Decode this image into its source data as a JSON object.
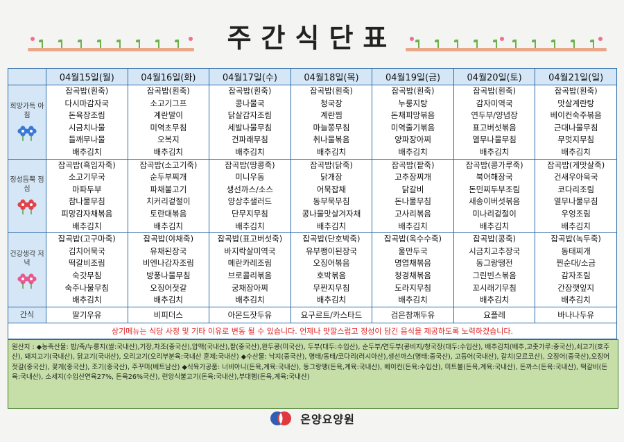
{
  "title": "주간식단표",
  "row_icons": {
    "breakfast": "blue-flowers-icon",
    "lunch": "red-flowers-icon",
    "dinner": "pink-flowers-icon"
  },
  "colors": {
    "header_bg": "#d5e7f6",
    "border": "#2d6aa6",
    "origin_bg": "#c6dea8",
    "notice": "#e02020"
  },
  "days": [
    "04월15일(월)",
    "04월16일(화)",
    "04월17일(수)",
    "04월18일(목)",
    "04월19일(금)",
    "04월20일(토)",
    "04월21일(일)"
  ],
  "meals": [
    {
      "label": "희망가득 아침",
      "items": [
        [
          "잡곡밥(흰죽)",
          "다시마감자국",
          "돈육장조림",
          "시금치나물",
          "들깨무나물",
          "배추김치"
        ],
        [
          "잡곡밥(흰죽)",
          "소고기그프",
          "계란말이",
          "미역초무침",
          "오복지",
          "배추김치"
        ],
        [
          "잡곡밥(흰죽)",
          "콩나물국",
          "닭살감자조림",
          "세발나물무침",
          "건파래무침",
          "배추김치"
        ],
        [
          "잡곡밥(흰죽)",
          "청국장",
          "계란찜",
          "마늘쫑무침",
          "취나물볶음",
          "배추김치"
        ],
        [
          "잡곡밥(흰죽)",
          "누룽지탕",
          "돈채피망볶음",
          "미역줄기볶음",
          "양파장아찌",
          "배추김치"
        ],
        [
          "잡곡밥(흰죽)",
          "감자미역국",
          "연두부/양념장",
          "표고버섯볶음",
          "열무나물무침",
          "배추김치"
        ],
        [
          "잡곡밥(흰죽)",
          "맛살계란탕",
          "베이컨숙주볶음",
          "근대나물무침",
          "무멋지무침",
          "배추김치"
        ]
      ]
    },
    {
      "label": "정성듬뿍 점심",
      "items": [
        [
          "잡곡밥(흑임자죽)",
          "소고기무국",
          "마파두부",
          "참나물무침",
          "피망감자채볶음",
          "배추김치"
        ],
        [
          "잡곡밥(소고기죽)",
          "순두부찌개",
          "파채불고기",
          "치커리겉절이",
          "토란대볶음",
          "배추김치"
        ],
        [
          "잡곡밥(땅콩죽)",
          "미니우동",
          "생선까스/소스",
          "양상추샐러드",
          "단무지무침",
          "배추김치"
        ],
        [
          "잡곡밥(닭죽)",
          "닭개장",
          "어묵잡채",
          "동부묵무침",
          "콩나물맛살겨자채",
          "배추김치"
        ],
        [
          "잡곡밥(팥죽)",
          "고추장찌개",
          "닭갈비",
          "돈나물무침",
          "고사리볶음",
          "배추김치"
        ],
        [
          "잡곡밥(콩가루죽)",
          "북어해장국",
          "돈민찌두부조림",
          "새송이버섯볶음",
          "미나리겉절이",
          "배추김치"
        ],
        [
          "잡곡밥(게맛살죽)",
          "건새우아욱국",
          "코다리조림",
          "열무나물무침",
          "우엉조림",
          "배추김치"
        ]
      ]
    },
    {
      "label": "건강생각 저녁",
      "items": [
        [
          "잡곡밥(고구마죽)",
          "김치어묵국",
          "떡갈비조림",
          "숙갓무침",
          "숙주나물무침",
          "배추김치"
        ],
        [
          "잡곡밥(야채죽)",
          "유채된장국",
          "비엔나감자조림",
          "방풍나물무침",
          "오징어젓갈",
          "배추김치"
        ],
        [
          "잡곡밥(표고버섯죽)",
          "바지락살미역국",
          "메란카레조림",
          "브로콜리볶음",
          "궁채장아찌",
          "배추김치"
        ],
        [
          "잡곡밥(단호박죽)",
          "유부팽이된장국",
          "오징어볶음",
          "호박볶음",
          "무짠지무침",
          "배추김치"
        ],
        [
          "잡곡밥(옥수수죽)",
          "울만두국",
          "명엽채볶음",
          "청경채볶음",
          "도라지무침",
          "배추김치"
        ],
        [
          "잡곡밥(콩죽)",
          "시금치고추장국",
          "동그랑땡전",
          "그린빈스볶음",
          "꼬시래기무침",
          "배추김치"
        ],
        [
          "잡곡밥(녹두죽)",
          "동태찌개",
          "찐순대/소금",
          "감자조림",
          "간장깻잎지",
          "배추김치"
        ]
      ]
    }
  ],
  "snack": {
    "label": "간식",
    "items": [
      "딸기우유",
      "비피더스",
      "아몬드잣두유",
      "요구르트/카스타드",
      "검은참깨두유",
      "요플레",
      "바나나두유"
    ]
  },
  "notice": "상기메뉴는 식당 사정 및 기타 이유로 변동 될 수 있습니다. 언제나 맛깔스럽고 정성이 담긴 음식을 제공하도록 노력하겠습니다.",
  "origin_text": "원산지 : ◆농축산물: 밥/죽/누룽지(쌀:국내산),기장,차조(중국산),압맥(국내산),팥(중국산),완두콩(미국산), 두부(대두:수입산), 순두부/연두부(콩비지/청국장(대두:수입산), 배추김치(배추,고춧가루:중국산),쇠고기(호주산), 돼지고기(국내산), 닭고기(국내산), 오리고기(오리부분육:국내산 훈제:국내산) ◆수산물: 낙지(중국산), 명태/동태/코다리(러시아산),생선까스(명태:중국산), 고등어(국내산), 갈치(모르코산), 오징어(중국산),오징어젓갈(중국산), 꽃게(중국산), 조기(중국산), 주꾸미(베트남산) ◆식육가공품: 너비아니(돈육,계육:국내산), 동그랑땡(돈육,계육:국내산), 베이컨(돈육:수입산), 미트볼(돈육,계육:국내산), 돈까스(돈육:국내산), 떡갈비(돈육:국내산), 소세지(수입산연육27%, 돈육26%국산), 런앙식불고기(돈육:국내산),부대햄(돈육,계육:국내산)",
  "footer": {
    "org_name": "온양요양원",
    "logo": "onyang-logo-icon"
  }
}
